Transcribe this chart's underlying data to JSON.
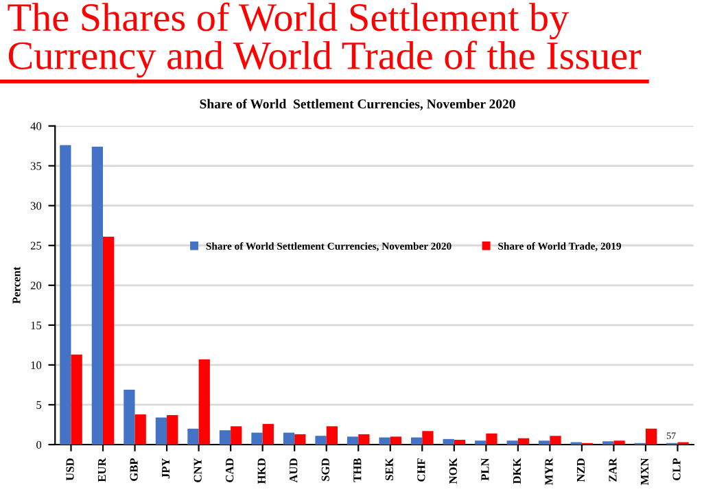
{
  "chart_data": {
    "type": "bar",
    "title": "The Shares of World Settlement by Currency and World Trade of the Issuer",
    "subtitle": "Share of World  Settlement Currencies, November 2020",
    "ylabel": "Percent",
    "categories": [
      "USD",
      "EUR",
      "GBP",
      "JPY",
      "CNY",
      "CAD",
      "HKD",
      "AUD",
      "SGD",
      "THB",
      "SEK",
      "CHF",
      "NOK",
      "PLN",
      "DKK",
      "MYR",
      "NZD",
      "ZAR",
      "MXN",
      "CLP"
    ],
    "series": [
      {
        "name": "Share of World Settlement Currencies, November 2020",
        "color": "#4472c4",
        "values": [
          37.6,
          37.4,
          6.9,
          3.4,
          2.0,
          1.8,
          1.5,
          1.5,
          1.1,
          1.0,
          0.9,
          0.9,
          0.7,
          0.5,
          0.5,
          0.5,
          0.3,
          0.4,
          0.2,
          0.2
        ]
      },
      {
        "name": "Share of World Trade, 2019",
        "color": "#ff0000",
        "values": [
          11.3,
          26.1,
          3.8,
          3.7,
          10.7,
          2.3,
          2.6,
          1.3,
          2.3,
          1.3,
          1.0,
          1.7,
          0.6,
          1.4,
          0.8,
          1.1,
          0.2,
          0.5,
          2.0,
          0.3
        ]
      }
    ],
    "ylim": [
      0,
      40
    ],
    "yticks": [
      0,
      5,
      10,
      15,
      20,
      25,
      30,
      35,
      40
    ],
    "grid": "y",
    "legend": "center",
    "annotations": [
      "57"
    ]
  }
}
